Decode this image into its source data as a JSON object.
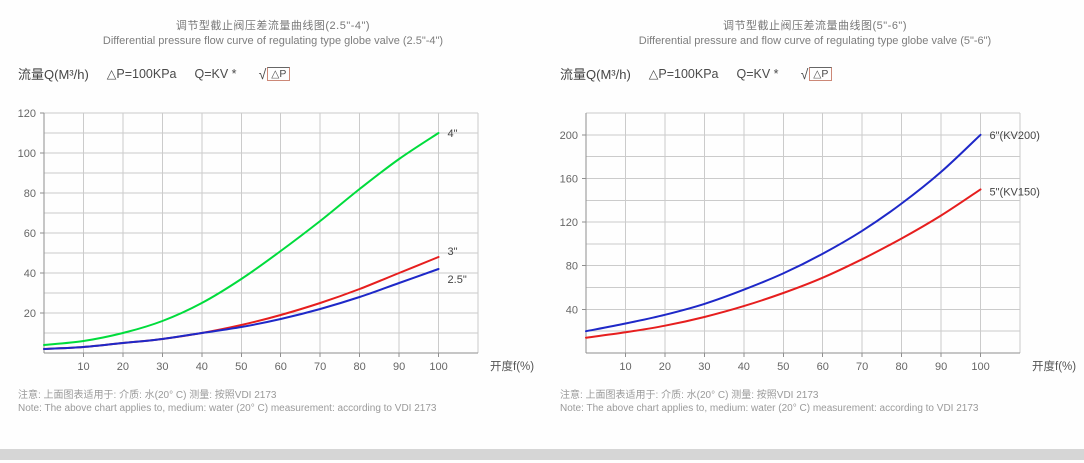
{
  "chart_data": [
    {
      "type": "line",
      "title": "调节型截止阀压差流量曲线图(2.5\"-4\")",
      "subtitle": "Differential pressure flow curve of regulating type globe valve (2.5\"-4\")",
      "ylabel": "流量Q(M³/h)",
      "xlabel": "开度f(%)",
      "pressure_label": "△P=100KPa",
      "formula_prefix": "Q=KV *",
      "sqrt_arg": "△P",
      "grid": true,
      "legend_position": "end-of-line",
      "x": [
        0,
        10,
        20,
        30,
        40,
        50,
        60,
        70,
        80,
        90,
        100
      ],
      "xlim": [
        0,
        110
      ],
      "ylim": [
        0,
        120
      ],
      "x_ticks": [
        10,
        20,
        30,
        40,
        50,
        60,
        70,
        80,
        90,
        100
      ],
      "y_ticks": [
        20,
        40,
        60,
        80,
        100,
        120
      ],
      "x_grid_step": 10,
      "y_grid_step": 10,
      "series": [
        {
          "name": "4\"",
          "color": "#00dc3c",
          "values": [
            4,
            6,
            10,
            16,
            25,
            37,
            51,
            66,
            82,
            97,
            110
          ],
          "label_dy": 0
        },
        {
          "name": "3\"",
          "color": "#e61e1e",
          "values": [
            2,
            3,
            5,
            7,
            10,
            14,
            19,
            25,
            32,
            40,
            48
          ],
          "label_dy": -6
        },
        {
          "name": "2.5\"",
          "color": "#1e28c8",
          "values": [
            2,
            3,
            5,
            7,
            10,
            13,
            17,
            22,
            28,
            35,
            42
          ],
          "label_dy": 10
        }
      ],
      "note_cn": "注意: 上面图表适用于: 介质: 水(20° C) 测量: 按照VDI 2173",
      "note_en": "Note: The above chart applies to, medium: water (20° C) measurement: according to VDI 2173"
    },
    {
      "type": "line",
      "title": "调节型截止阀压差流量曲线图(5\"-6\")",
      "subtitle": "Differential pressure and flow curve of regulating type globe valve (5\"-6\")",
      "ylabel": "流量Q(M³/h)",
      "xlabel": "开度f(%)",
      "pressure_label": "△P=100KPa",
      "formula_prefix": "Q=KV *",
      "sqrt_arg": "△P",
      "grid": true,
      "legend_position": "end-of-line",
      "x": [
        0,
        10,
        20,
        30,
        40,
        50,
        60,
        70,
        80,
        90,
        100
      ],
      "xlim": [
        0,
        110
      ],
      "ylim": [
        0,
        220
      ],
      "x_ticks": [
        10,
        20,
        30,
        40,
        50,
        60,
        70,
        80,
        90,
        100
      ],
      "y_ticks": [
        40,
        80,
        120,
        160,
        200
      ],
      "x_grid_step": 10,
      "y_grid_step": 20,
      "series": [
        {
          "name": "6\"(KV200)",
          "color": "#1e28c8",
          "values": [
            20,
            27,
            35,
            45,
            58,
            73,
            91,
            112,
            137,
            166,
            200
          ],
          "label_dy": 0
        },
        {
          "name": "5\"(KV150)",
          "color": "#e61e1e",
          "values": [
            14,
            19,
            25,
            33,
            43,
            55,
            69,
            86,
            105,
            126,
            150
          ],
          "label_dy": 2
        }
      ],
      "note_cn": "注意: 上面图表适用于: 介质: 水(20° C) 测量: 按照VDI 2173",
      "note_en": "Note: The above chart applies to, medium: water (20° C) measurement: according to VDI 2173"
    }
  ]
}
